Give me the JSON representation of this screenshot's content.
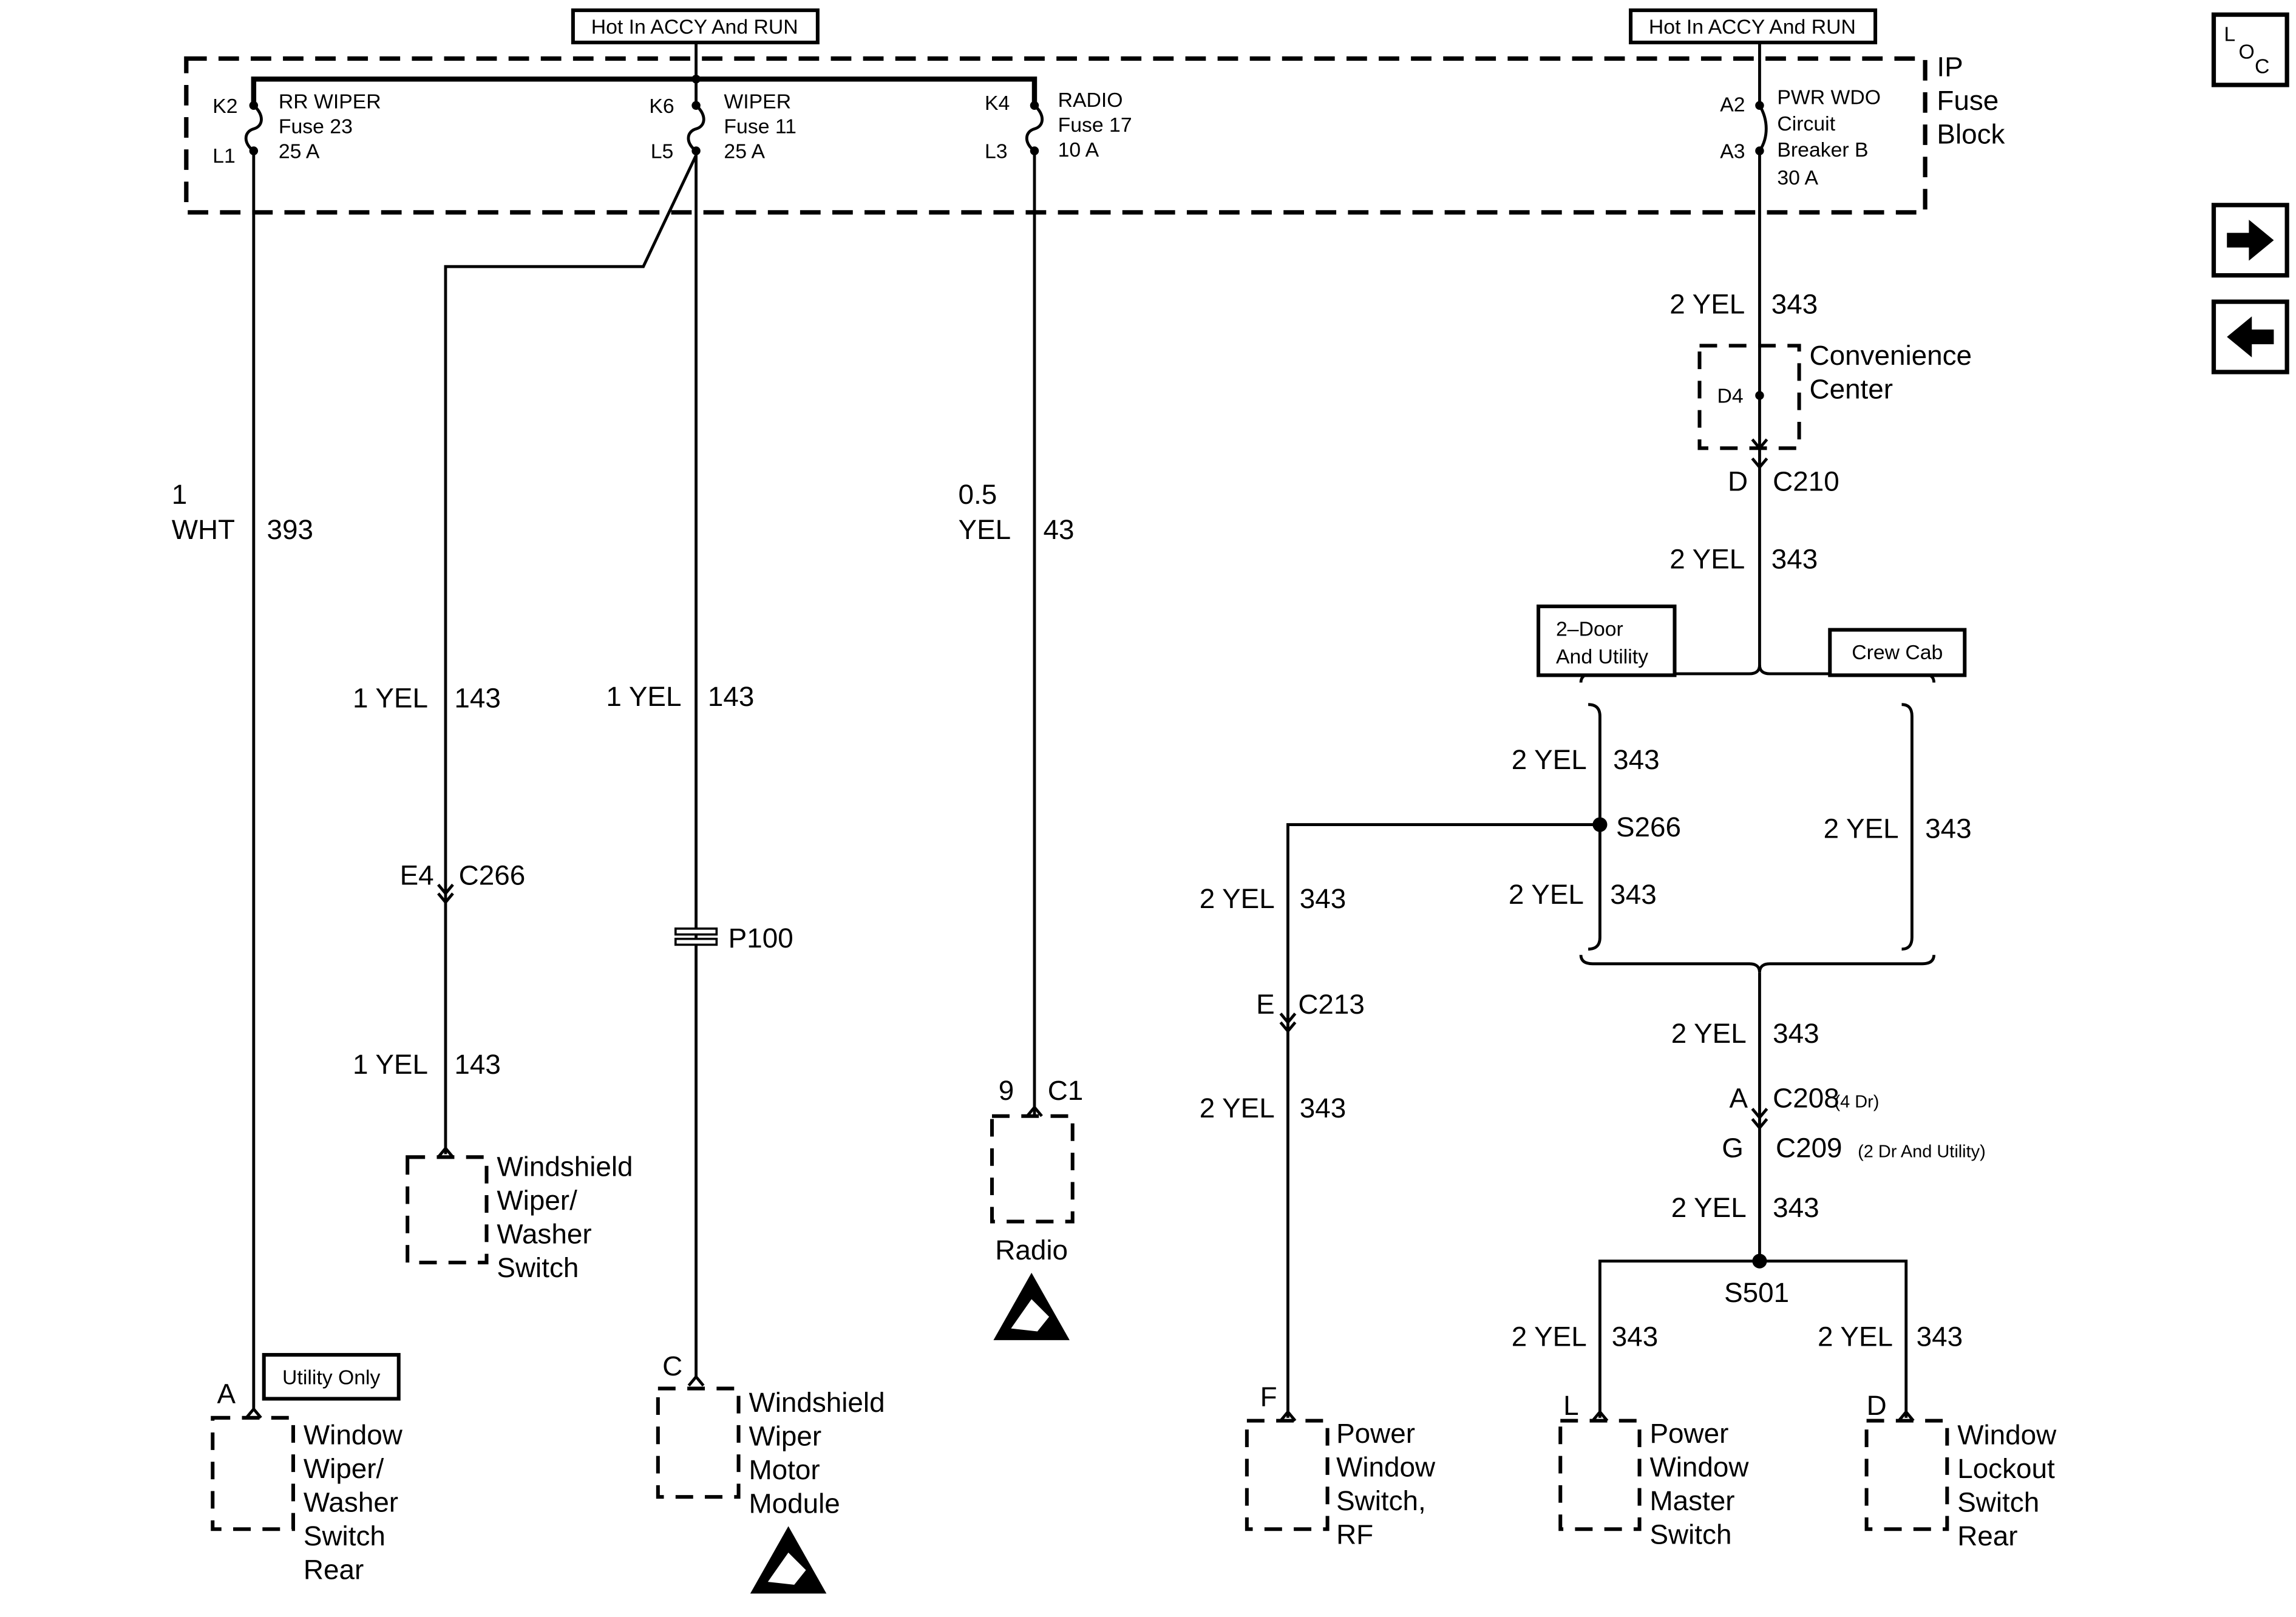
{
  "power_labels": [
    "Hot In ACCY And RUN",
    "Hot In ACCY And RUN"
  ],
  "fuse_block": {
    "name_lines": [
      "IP",
      "Fuse",
      "Block"
    ],
    "fuses": [
      {
        "in": "K2",
        "out": "L1",
        "lines": [
          "RR WIPER",
          "Fuse 23",
          "25 A"
        ]
      },
      {
        "in": "K6",
        "out": "L5",
        "lines": [
          "WIPER",
          "Fuse 11",
          "25 A"
        ]
      },
      {
        "in": "K4",
        "out": "L3",
        "lines": [
          "RADIO",
          "Fuse 17",
          "10 A"
        ]
      }
    ],
    "breaker": {
      "in": "A2",
      "out": "A3",
      "lines": [
        "PWR WDO",
        "Circuit",
        "Breaker B",
        "30 A"
      ]
    }
  },
  "nav": {
    "loc_letters": [
      "L",
      "O",
      "C"
    ],
    "next_icon": "arrow-right-icon",
    "prev_icon": "arrow-left-icon"
  },
  "wires": [
    {
      "size": "1",
      "color": "WHT",
      "circuit": "393"
    },
    {
      "size_color": "1 YEL",
      "circuit": "143"
    },
    {
      "size_color": "1 YEL",
      "circuit": "143"
    },
    {
      "size": "0.5",
      "color": "YEL",
      "circuit": "43"
    },
    {
      "size_color": "1 YEL",
      "circuit": "143"
    },
    {
      "size_color": "2 YEL",
      "circuit": "343"
    },
    {
      "size_color": "2 YEL",
      "circuit": "343"
    },
    {
      "size_color": "2 YEL",
      "circuit": "343"
    },
    {
      "size_color": "2 YEL",
      "circuit": "343"
    },
    {
      "size_color": "2 YEL",
      "circuit": "343"
    },
    {
      "size_color": "2 YEL",
      "circuit": "343"
    },
    {
      "size_color": "2 YEL",
      "circuit": "343"
    },
    {
      "size_color": "2 YEL",
      "circuit": "343"
    },
    {
      "size_color": "2 YEL",
      "circuit": "343"
    },
    {
      "size_color": "2 YEL",
      "circuit": "343"
    },
    {
      "size_color": "2 YEL",
      "circuit": "343"
    }
  ],
  "connectors": {
    "c266": {
      "pin": "E4",
      "name": "C266"
    },
    "p100": {
      "name": "P100"
    },
    "c1": {
      "pin": "9",
      "name": "C1"
    },
    "c210": {
      "pin": "D",
      "name": "C210"
    },
    "c213": {
      "pin": "E",
      "name": "C213"
    },
    "c208": {
      "pin": "A",
      "name": "C208",
      "note": "(4 Dr)"
    },
    "c209": {
      "pin": "G",
      "name": "C209",
      "note": "(2 Dr And Utility)"
    }
  },
  "splices": {
    "s266": "S266",
    "s501": "S501"
  },
  "options": {
    "two_door": [
      "2–Door",
      "And Utility"
    ],
    "crew_cab": "Crew Cab",
    "utility_only": "Utility Only"
  },
  "components": {
    "convenience_center": {
      "pin": "D4",
      "lines": [
        "Convenience",
        "Center"
      ]
    },
    "windshield_switch": {
      "lines": [
        "Windshield",
        "Wiper/",
        "Washer",
        "Switch"
      ]
    },
    "window_wiper_rear": {
      "pin": "A",
      "lines": [
        "Window",
        "Wiper/",
        "Washer",
        "Switch",
        "Rear"
      ]
    },
    "wiper_motor": {
      "pin": "C",
      "lines": [
        "Windshield",
        "Wiper",
        "Motor",
        "Module"
      ]
    },
    "radio": {
      "lines": [
        "Radio"
      ]
    },
    "power_window_rf": {
      "pin": "F",
      "lines": [
        "Power",
        "Window",
        "Switch,",
        "RF"
      ]
    },
    "power_window_master": {
      "pin": "L",
      "lines": [
        "Power",
        "Window",
        "Master",
        "Switch"
      ]
    },
    "window_lockout": {
      "pin": "D",
      "lines": [
        "Window",
        "Lockout",
        "Switch",
        "Rear"
      ]
    }
  },
  "icons": {
    "esd": "esd-warning-icon"
  }
}
